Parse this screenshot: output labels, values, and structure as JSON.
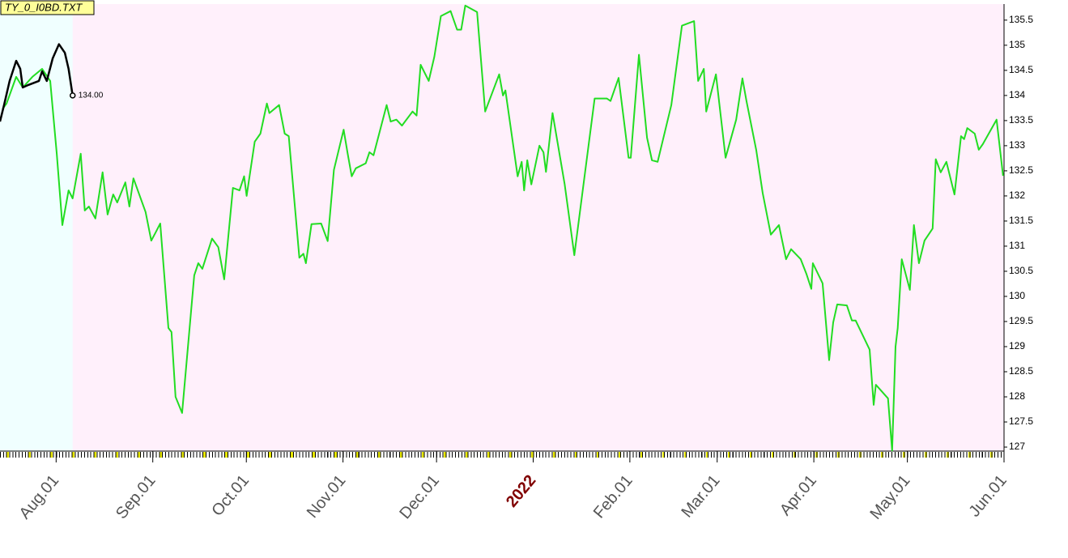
{
  "chart_data": {
    "type": "line",
    "title": "TY_0_I0BD.TXT",
    "xlim": [
      0,
      322
    ],
    "ylim": [
      126.92,
      135.82
    ],
    "xticks": [
      {
        "value": 18,
        "label": "Aug.01"
      },
      {
        "value": 49,
        "label": "Sep.01"
      },
      {
        "value": 79,
        "label": "Oct.01"
      },
      {
        "value": 110,
        "label": "Nov.01"
      },
      {
        "value": 140,
        "label": "Dec.01"
      },
      {
        "value": 171,
        "label": "2022",
        "color": "#800000"
      },
      {
        "value": 202,
        "label": "Feb.01"
      },
      {
        "value": 230,
        "label": "Mar.01"
      },
      {
        "value": 261,
        "label": "Apr.01"
      },
      {
        "value": 291,
        "label": "May.01"
      },
      {
        "value": 322,
        "label": "Jun.01"
      }
    ],
    "yticks": [
      127,
      127.5,
      128,
      128.5,
      129,
      129.5,
      130,
      130.5,
      131,
      131.5,
      132,
      132.5,
      133,
      133.5,
      134,
      134.5,
      135,
      135.5
    ],
    "series": [
      {
        "color": "#22dd22",
        "x": [
          0.8,
          2.1,
          5.2,
          7.3,
          10.4,
          13.5,
          16.1,
          18.2,
          20.0,
          22.0,
          23.3,
          25.9,
          27.2,
          28.5,
          30.6,
          32.9,
          34.5,
          36.3,
          37.6,
          40.2,
          41.5,
          42.8,
          46.7,
          48.5,
          49.8,
          51.4,
          54.0,
          55.0,
          56.3,
          58.4,
          62.3,
          63.6,
          64.9,
          68.0,
          70.0,
          71.9,
          74.7,
          76.8,
          78.3,
          79.1,
          81.7,
          83.5,
          85.6,
          86.4,
          89.5,
          91.3,
          92.6,
          96.0,
          97.3,
          98.1,
          99.9,
          103.0,
          105.1,
          107.1,
          110.2,
          111.5,
          112.8,
          114.1,
          117.3,
          118.5,
          119.8,
          124.0,
          125.3,
          127.1,
          128.9,
          132.3,
          133.6,
          134.9,
          137.5,
          139.3,
          141.4,
          144.5,
          146.6,
          147.9,
          149.2,
          153.0,
          155.6,
          160.1,
          161.3,
          162.1,
          166.0,
          167.3,
          168.1,
          169.1,
          170.4,
          173.0,
          174.3,
          175.1,
          177.2,
          181.1,
          184.2,
          190.7,
          194.6,
          195.8,
          198.4,
          201.6,
          202.3,
          204.9,
          207.5,
          209.1,
          210.9,
          215.3,
          218.7,
          222.6,
          223.9,
          225.7,
          226.5,
          229.6,
          232.7,
          236.1,
          238.1,
          239.4,
          242.5,
          244.6,
          247.2,
          249.8,
          252.1,
          253.7,
          256.8,
          258.6,
          260.2,
          260.7,
          263.8,
          265.9,
          267.2,
          268.5,
          271.6,
          273.2,
          274.4,
          278.9,
          280.2,
          280.9,
          284.8,
          286.1,
          287.2,
          287.9,
          289.2,
          291.8,
          293.1,
          294.7,
          296.5,
          299.1,
          300.1,
          301.7,
          303.5,
          306.1,
          308.2,
          309.2,
          310.2,
          312.6,
          313.9,
          315.2,
          319.6,
          321.7
        ],
        "values": [
          133.73,
          133.84,
          134.37,
          134.16,
          134.37,
          134.53,
          134.29,
          132.84,
          131.42,
          132.11,
          131.95,
          132.84,
          131.71,
          131.79,
          131.55,
          132.47,
          131.63,
          132.03,
          131.87,
          132.27,
          131.79,
          132.35,
          131.68,
          131.11,
          131.26,
          131.45,
          129.37,
          129.29,
          128.0,
          127.68,
          130.42,
          130.66,
          130.55,
          131.15,
          130.98,
          130.34,
          132.16,
          132.11,
          132.39,
          132.0,
          133.08,
          133.24,
          133.84,
          133.65,
          133.81,
          133.24,
          133.19,
          130.77,
          130.85,
          130.66,
          131.44,
          131.45,
          131.1,
          132.52,
          133.32,
          132.84,
          132.39,
          132.55,
          132.65,
          132.87,
          132.81,
          133.81,
          133.48,
          133.52,
          133.4,
          133.68,
          133.6,
          134.61,
          134.29,
          134.77,
          135.58,
          135.68,
          135.31,
          135.31,
          135.79,
          135.66,
          133.68,
          134.42,
          134.0,
          134.1,
          132.39,
          132.68,
          132.11,
          132.71,
          132.23,
          133.0,
          132.87,
          132.48,
          133.65,
          132.23,
          130.82,
          133.94,
          133.94,
          133.89,
          134.35,
          132.76,
          132.76,
          134.81,
          133.16,
          132.71,
          132.68,
          133.81,
          135.39,
          135.48,
          134.29,
          134.53,
          133.68,
          134.42,
          132.76,
          133.52,
          134.34,
          133.89,
          132.92,
          132.06,
          131.23,
          131.42,
          130.74,
          130.94,
          130.74,
          130.45,
          130.15,
          130.66,
          130.26,
          128.73,
          129.48,
          129.84,
          129.82,
          129.52,
          129.52,
          128.94,
          127.84,
          128.24,
          127.97,
          126.93,
          129.0,
          129.37,
          130.74,
          130.13,
          131.42,
          130.66,
          131.11,
          131.35,
          132.73,
          132.47,
          132.68,
          132.03,
          133.19,
          133.13,
          133.35,
          133.24,
          132.92,
          133.03,
          133.52,
          132.4
        ]
      },
      {
        "color": "#000000",
        "x": [
          0,
          1.3,
          3.1,
          5.2,
          6.5,
          7.3,
          9.1,
          12.5,
          13.5,
          15.0,
          16.9,
          18.9,
          20.8,
          22.0,
          23.3
        ],
        "values": [
          133.48,
          133.81,
          134.29,
          134.69,
          134.53,
          134.16,
          134.21,
          134.29,
          134.48,
          134.29,
          134.74,
          135.02,
          134.85,
          134.53,
          134.0
        ],
        "end_label": "134.00"
      }
    ]
  }
}
